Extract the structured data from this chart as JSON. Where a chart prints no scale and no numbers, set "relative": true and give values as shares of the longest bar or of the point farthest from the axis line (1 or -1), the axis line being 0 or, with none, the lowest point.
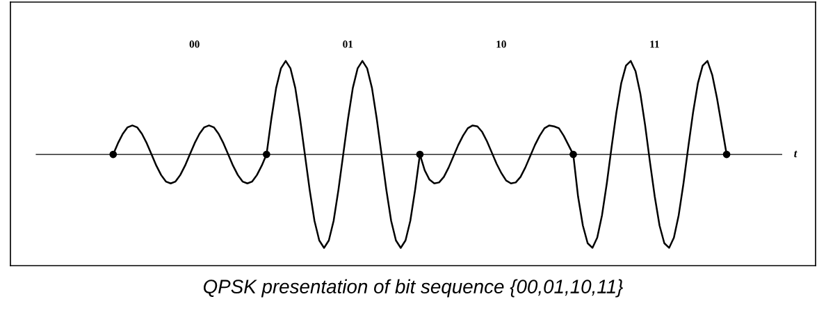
{
  "chart_data": {
    "type": "line",
    "relative": true,
    "annotations": [
      "00",
      "01",
      "10",
      "11",
      "t",
      "QPSK presentation of bit sequence {00,01,10,11}"
    ],
    "categories": [
      null,
      null,
      null,
      null,
      null,
      null,
      null,
      null,
      null,
      null,
      null,
      null,
      null,
      null,
      null,
      null,
      null,
      null,
      null,
      null,
      null,
      null,
      null,
      null,
      null,
      null,
      null,
      null,
      null,
      null,
      null,
      null,
      null,
      null,
      null,
      null,
      null,
      null,
      null,
      null,
      null,
      null,
      null,
      null,
      null,
      null,
      null,
      null,
      null,
      null,
      null,
      null,
      null,
      null,
      null,
      null,
      null,
      null,
      null,
      null,
      null,
      null,
      null,
      null,
      null,
      null,
      null,
      null,
      null,
      null,
      null,
      null,
      null,
      null,
      null,
      null,
      null,
      null,
      null,
      null,
      null,
      null,
      null,
      null,
      null,
      null,
      null,
      null,
      null,
      null,
      null,
      null,
      null,
      null,
      null,
      null,
      null,
      null,
      null,
      null,
      null,
      null,
      null,
      null,
      null,
      null,
      null,
      null,
      null,
      null,
      null,
      null,
      null,
      null,
      null,
      null,
      null,
      null,
      null,
      null,
      null,
      null,
      null,
      null,
      null,
      null,
      null,
      null,
      null
    ],
    "series": [
      {
        "color": "#000000",
        "values": [
          0,
          0.12,
          0.22,
          0.29,
          0.31,
          0.29,
          0.22,
          0.12,
          0,
          -0.12,
          -0.22,
          -0.29,
          -0.31,
          -0.29,
          -0.22,
          -0.12,
          0,
          0.12,
          0.22,
          0.29,
          0.31,
          0.29,
          0.22,
          0.12,
          0,
          -0.12,
          -0.22,
          -0.29,
          -0.31,
          -0.29,
          -0.22,
          -0.12,
          0,
          0.38,
          0.71,
          0.92,
          1,
          0.92,
          0.71,
          0.38,
          0,
          -0.38,
          -0.71,
          -0.92,
          -1,
          -0.92,
          -0.71,
          -0.38,
          0,
          0.38,
          0.71,
          0.92,
          1,
          0.92,
          0.71,
          0.38,
          0,
          -0.38,
          -0.71,
          -0.92,
          -1,
          -0.92,
          -0.71,
          -0.38,
          0,
          -0.17,
          -0.27,
          -0.31,
          -0.3,
          -0.24,
          -0.14,
          -0.02,
          0.1,
          0.2,
          0.28,
          0.31,
          0.3,
          0.24,
          0.14,
          0.02,
          -0.1,
          -0.2,
          -0.28,
          -0.31,
          -0.3,
          -0.24,
          -0.14,
          -0.02,
          0.1,
          0.2,
          0.28,
          0.31,
          0.3,
          0.28,
          0.2,
          0.1,
          0,
          -0.45,
          -0.76,
          -0.95,
          -1,
          -0.89,
          -0.65,
          -0.31,
          0.08,
          0.45,
          0.76,
          0.95,
          1,
          0.89,
          0.65,
          0.31,
          -0.08,
          -0.45,
          -0.76,
          -0.95,
          -1,
          -0.89,
          -0.65,
          -0.31,
          0.08,
          0.45,
          0.76,
          0.95,
          1,
          0.85,
          0.6,
          0.3,
          0
        ]
      }
    ]
  }
}
